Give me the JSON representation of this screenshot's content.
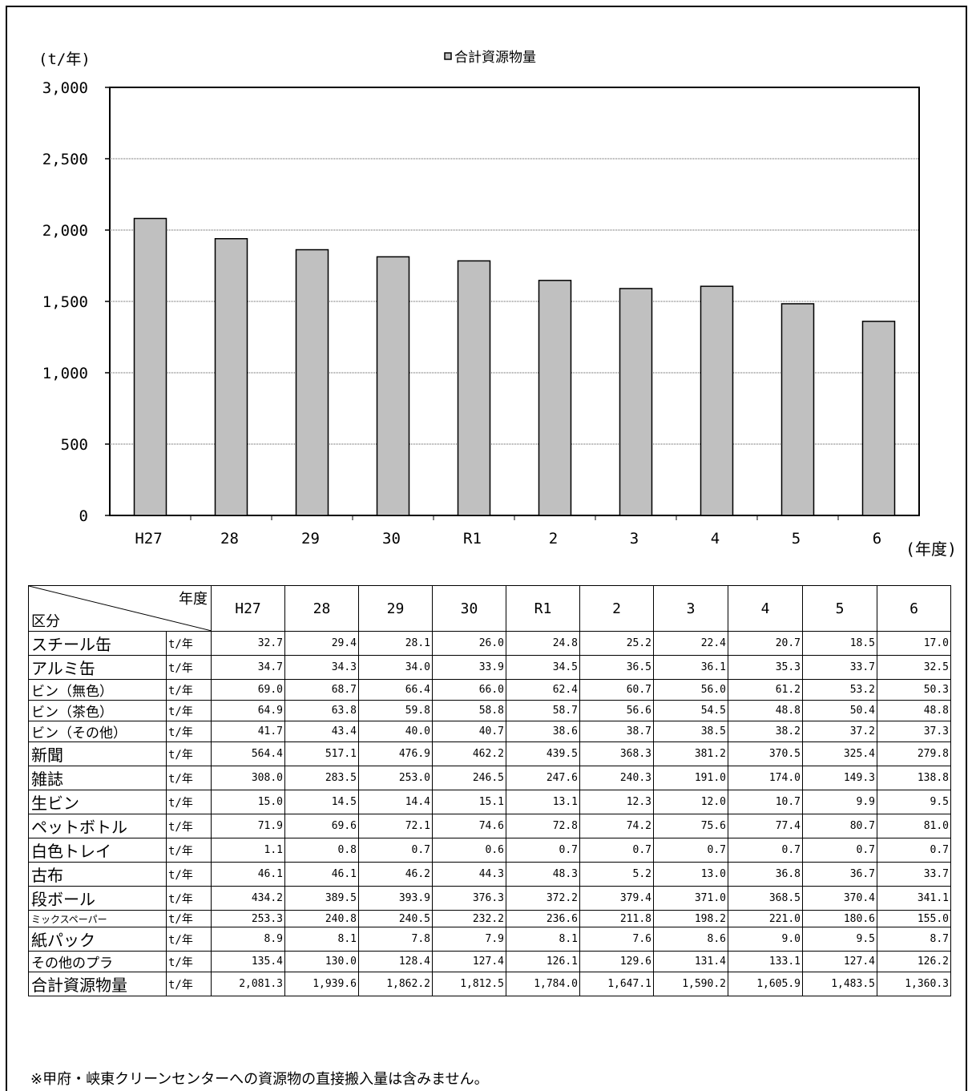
{
  "chart_data": {
    "type": "bar",
    "title": "",
    "ylabel": "(t/年)",
    "xlabel": "(年度)",
    "legend": {
      "label": "合計資源物量",
      "position": "top-center"
    },
    "categories": [
      "H27",
      "28",
      "29",
      "30",
      "R1",
      "2",
      "3",
      "4",
      "5",
      "6"
    ],
    "series": [
      {
        "name": "合計資源物量",
        "values": [
          2081.3,
          1939.6,
          1862.2,
          1812.5,
          1784.0,
          1647.1,
          1590.2,
          1605.9,
          1483.5,
          1360.3
        ]
      }
    ],
    "ylim": [
      0,
      3000
    ],
    "yticks": [
      {
        "value": 0,
        "label": "0"
      },
      {
        "value": 500,
        "label": "500"
      },
      {
        "value": 1000,
        "label": "1,000"
      },
      {
        "value": 1500,
        "label": "1,500"
      },
      {
        "value": 2000,
        "label": "2,000"
      },
      {
        "value": 2500,
        "label": "2,500"
      },
      {
        "value": 3000,
        "label": "3,000"
      }
    ],
    "grid": true,
    "bar_color": "#c0c0c0"
  },
  "table": {
    "corner_top": "年度",
    "corner_bottom": "区分",
    "years": [
      "H27",
      "28",
      "29",
      "30",
      "R1",
      "2",
      "3",
      "4",
      "5",
      "6"
    ],
    "rows": [
      {
        "label": "スチール缶",
        "unit": "t/年",
        "size": "",
        "values": [
          "32.7",
          "29.4",
          "28.1",
          "26.0",
          "24.8",
          "25.2",
          "22.4",
          "20.7",
          "18.5",
          "17.0"
        ]
      },
      {
        "label": "アルミ缶",
        "unit": "t/年",
        "size": "",
        "values": [
          "34.7",
          "34.3",
          "34.0",
          "33.9",
          "34.5",
          "36.5",
          "36.1",
          "35.3",
          "33.7",
          "32.5"
        ]
      },
      {
        "label": "ビン（無色）",
        "unit": "t/年",
        "size": "mid",
        "values": [
          "69.0",
          "68.7",
          "66.4",
          "66.0",
          "62.4",
          "60.7",
          "56.0",
          "61.2",
          "53.2",
          "50.3"
        ]
      },
      {
        "label": "ビン（茶色）",
        "unit": "t/年",
        "size": "mid",
        "values": [
          "64.9",
          "63.8",
          "59.8",
          "58.8",
          "58.7",
          "56.6",
          "54.5",
          "48.8",
          "50.4",
          "48.8"
        ]
      },
      {
        "label": "ビン（その他）",
        "unit": "t/年",
        "size": "mid",
        "values": [
          "41.7",
          "43.4",
          "40.0",
          "40.7",
          "38.6",
          "38.7",
          "38.5",
          "38.2",
          "37.2",
          "37.3"
        ]
      },
      {
        "label": "新聞",
        "unit": "t/年",
        "size": "",
        "values": [
          "564.4",
          "517.1",
          "476.9",
          "462.2",
          "439.5",
          "368.3",
          "381.2",
          "370.5",
          "325.4",
          "279.8"
        ]
      },
      {
        "label": "雑誌",
        "unit": "t/年",
        "size": "",
        "values": [
          "308.0",
          "283.5",
          "253.0",
          "246.5",
          "247.6",
          "240.3",
          "191.0",
          "174.0",
          "149.3",
          "138.8"
        ]
      },
      {
        "label": "生ビン",
        "unit": "t/年",
        "size": "",
        "values": [
          "15.0",
          "14.5",
          "14.4",
          "15.1",
          "13.1",
          "12.3",
          "12.0",
          "10.7",
          "9.9",
          "9.5"
        ]
      },
      {
        "label": "ペットボトル",
        "unit": "t/年",
        "size": "",
        "values": [
          "71.9",
          "69.6",
          "72.1",
          "74.6",
          "72.8",
          "74.2",
          "75.6",
          "77.4",
          "80.7",
          "81.0"
        ]
      },
      {
        "label": "白色トレイ",
        "unit": "t/年",
        "size": "",
        "values": [
          "1.1",
          "0.8",
          "0.7",
          "0.6",
          "0.7",
          "0.7",
          "0.7",
          "0.7",
          "0.7",
          "0.7"
        ]
      },
      {
        "label": "古布",
        "unit": "t/年",
        "size": "",
        "values": [
          "46.1",
          "46.1",
          "46.2",
          "44.3",
          "48.3",
          "5.2",
          "13.0",
          "36.8",
          "36.7",
          "33.7"
        ]
      },
      {
        "label": "段ボール",
        "unit": "t/年",
        "size": "",
        "values": [
          "434.2",
          "389.5",
          "393.9",
          "376.3",
          "372.2",
          "379.4",
          "371.0",
          "368.5",
          "370.4",
          "341.1"
        ]
      },
      {
        "label": "ミックスペーパー",
        "unit": "t/年",
        "size": "small",
        "values": [
          "253.3",
          "240.8",
          "240.5",
          "232.2",
          "236.6",
          "211.8",
          "198.2",
          "221.0",
          "180.6",
          "155.0"
        ]
      },
      {
        "label": "紙パック",
        "unit": "t/年",
        "size": "",
        "values": [
          "8.9",
          "8.1",
          "7.8",
          "7.9",
          "8.1",
          "7.6",
          "8.6",
          "9.0",
          "9.5",
          "8.7"
        ]
      },
      {
        "label": "その他のプラ",
        "unit": "t/年",
        "size": "mid",
        "values": [
          "135.4",
          "130.0",
          "128.4",
          "127.4",
          "126.1",
          "129.6",
          "131.4",
          "133.1",
          "127.4",
          "126.2"
        ]
      },
      {
        "label": "合計資源物量",
        "unit": "t/年",
        "size": "",
        "values": [
          "2,081.3",
          "1,939.6",
          "1,862.2",
          "1,812.5",
          "1,784.0",
          "1,647.1",
          "1,590.2",
          "1,605.9",
          "1,483.5",
          "1,360.3"
        ]
      }
    ]
  },
  "note": "※甲府・峡東クリーンセンターへの資源物の直接搬入量は含みません。"
}
